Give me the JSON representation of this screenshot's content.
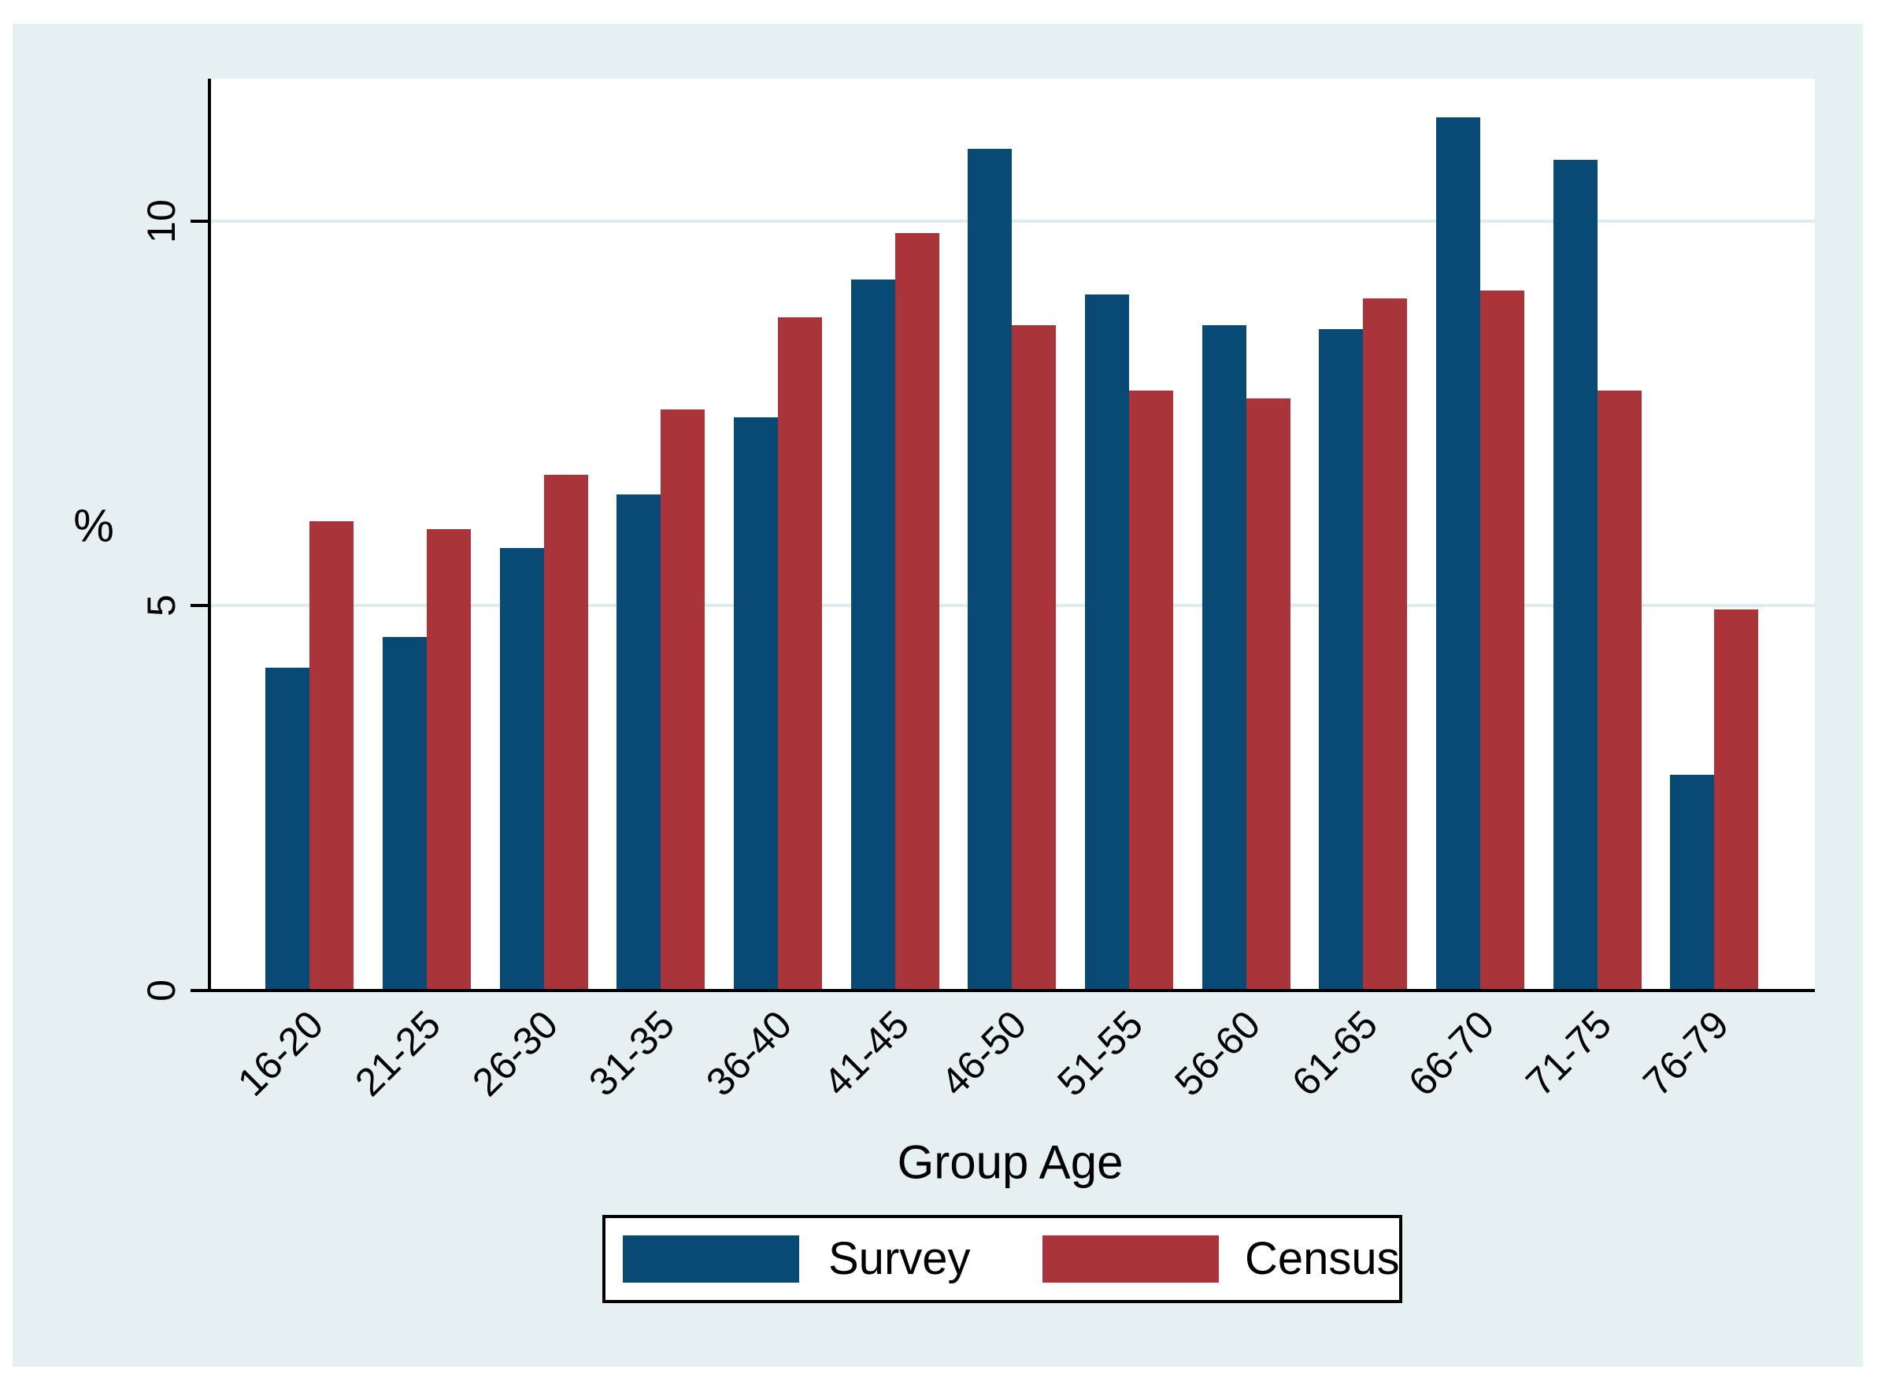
{
  "axes": {
    "ylabel": "%",
    "xlabel": "Group Age",
    "y_tick_labels": [
      "0",
      "5",
      "10"
    ]
  },
  "colors": {
    "page_background": "#ffffff",
    "graph_background": "#e6f0f1",
    "plot_background": "#ffffff",
    "gridline": "#dcebed",
    "axis": "#000000",
    "survey_bar": "#084a73",
    "census_bar": "#a93439"
  },
  "legend": {
    "survey_label": "Survey",
    "census_label": "Census"
  },
  "chart_data": {
    "type": "bar",
    "title": "",
    "xlabel": "Group Age",
    "ylabel": "%",
    "categories": [
      "16-20",
      "21-25",
      "26-30",
      "31-35",
      "36-40",
      "41-45",
      "46-50",
      "51-55",
      "56-60",
      "61-65",
      "66-70",
      "71-75",
      "76-79"
    ],
    "series": [
      {
        "name": "Survey",
        "color": "#084a73",
        "values": [
          4.2,
          4.6,
          5.75,
          6.45,
          7.45,
          9.25,
          10.95,
          9.05,
          8.65,
          8.6,
          11.35,
          10.8,
          2.8
        ]
      },
      {
        "name": "Census",
        "color": "#a93439",
        "values": [
          6.1,
          6.0,
          6.7,
          7.55,
          8.75,
          9.85,
          8.65,
          7.8,
          7.7,
          9.0,
          9.1,
          7.8,
          4.95
        ]
      }
    ],
    "ylim": [
      0,
      11.85
    ],
    "y_tick_values": [
      0,
      5,
      10
    ],
    "grid": "horizontal gridlines at 5 and 10",
    "legend_position": "bottom"
  }
}
